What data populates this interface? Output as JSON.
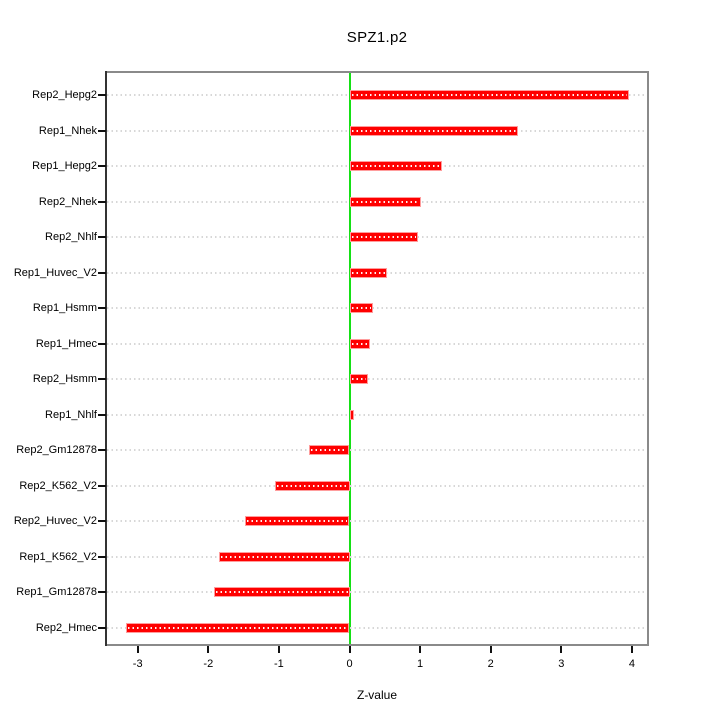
{
  "title": "SPZ1.p2",
  "chart_data": {
    "type": "bar",
    "orientation": "horizontal",
    "title": "SPZ1.p2",
    "xlabel": "Z-value",
    "ylabel": "",
    "categories": [
      "Rep2_Hepg2",
      "Rep1_Nhek",
      "Rep1_Hepg2",
      "Rep2_Nhek",
      "Rep2_Nhlf",
      "Rep1_Huvec_V2",
      "Rep1_Hsmm",
      "Rep1_Hmec",
      "Rep2_Hsmm",
      "Rep1_Nhlf",
      "Rep2_Gm12878",
      "Rep2_K562_V2",
      "Rep2_Huvec_V2",
      "Rep1_K562_V2",
      "Rep1_Gm12878",
      "Rep2_Hmec"
    ],
    "values": [
      3.95,
      2.38,
      1.3,
      1.0,
      0.96,
      0.52,
      0.33,
      0.29,
      0.26,
      0.05,
      -0.57,
      -1.06,
      -1.48,
      -1.85,
      -1.92,
      -3.16
    ],
    "x_ticks": [
      -3,
      -2,
      -1,
      0,
      1,
      2,
      3,
      4
    ],
    "xlim": [
      -3.46,
      4.23
    ],
    "grid": "dotted-horizontal-per-row",
    "legend": "none",
    "bar_color": "#ff0000",
    "zero_line_color": "#15e015",
    "grid_color": "#d7d7d7",
    "box_color": "#8a8a8a"
  }
}
